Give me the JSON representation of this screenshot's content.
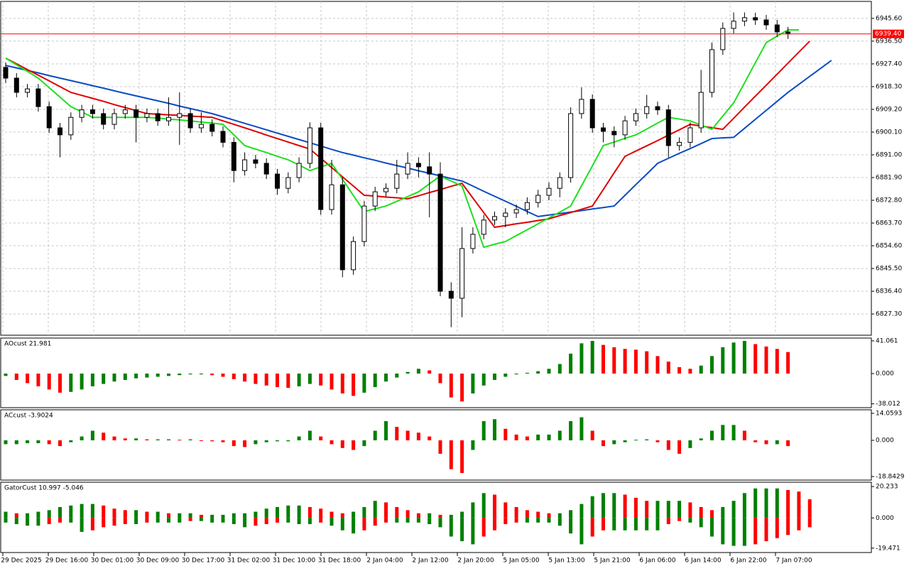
{
  "chart_data": [
    {
      "type": "candlestick",
      "grid": true,
      "up_color": "#ffffff",
      "down_color": "#000000",
      "border_color": "#000000",
      "ylim": [
        6818.8,
        6952.4
      ],
      "yticks": [
        {
          "value": 6945.6,
          "label": "6945.60"
        },
        {
          "value": 6936.5,
          "label": "6936.50"
        },
        {
          "value": 6927.4,
          "label": "6927.40"
        },
        {
          "value": 6918.3,
          "label": "6918.30"
        },
        {
          "value": 6909.2,
          "label": "6909.20"
        },
        {
          "value": 6900.1,
          "label": "6900.10"
        },
        {
          "value": 6891,
          "label": "6891.00"
        },
        {
          "value": 6881.9,
          "label": "6881.90"
        },
        {
          "value": 6872.8,
          "label": "6872.80"
        },
        {
          "value": 6863.7,
          "label": "6863.70"
        },
        {
          "value": 6854.6,
          "label": "6854.60"
        },
        {
          "value": 6845.5,
          "label": "6845.50"
        },
        {
          "value": 6836.4,
          "label": "6836.40"
        },
        {
          "value": 6827.3,
          "label": "6827.30"
        }
      ],
      "last_price": {
        "value": 6939.4,
        "label": "6939.40"
      },
      "last_price_color": "#ff0000",
      "x_labels": [
        "29 Dec 2025",
        "29 Dec 16:00",
        "30 Dec 01:00",
        "30 Dec 09:00",
        "30 Dec 17:00",
        "31 Dec 02:00",
        "31 Dec 10:00",
        "31 Dec 18:00",
        "2 Jan 04:00",
        "2 Jan 12:00",
        "2 Jan 20:00",
        "5 Jan 05:00",
        "5 Jan 13:00",
        "5 Jan 21:00",
        "6 Jan 06:00",
        "6 Jan 14:00",
        "6 Jan 22:00",
        "7 Jan 07:00"
      ],
      "ohlc": [
        [
          6926,
          6928,
          6919.7,
          6921.7
        ],
        [
          6921.7,
          6923.7,
          6914,
          6916
        ],
        [
          6916,
          6919.4,
          6914,
          6917.4
        ],
        [
          6917.4,
          6919.4,
          6908.3,
          6910.3
        ],
        [
          6910.3,
          6912.3,
          6899.8,
          6901.8
        ],
        [
          6901.8,
          6903.8,
          6890,
          6899
        ],
        [
          6899,
          6908,
          6897,
          6906
        ],
        [
          6906,
          6911,
          6904,
          6909
        ],
        [
          6909,
          6911,
          6905.5,
          6907.5
        ],
        [
          6907.5,
          6909.5,
          6901.2,
          6903.2
        ],
        [
          6903.2,
          6909.5,
          6901.2,
          6907.5
        ],
        [
          6907.5,
          6911,
          6905.5,
          6909
        ],
        [
          6909,
          6911,
          6896,
          6906
        ],
        [
          6906,
          6909.5,
          6904,
          6907.5
        ],
        [
          6907.5,
          6909.5,
          6902.6,
          6904.6
        ],
        [
          6904.6,
          6914,
          6902.6,
          6906
        ],
        [
          6906,
          6916,
          6895,
          6907.5
        ],
        [
          6907.5,
          6909.5,
          6899.8,
          6901.8
        ],
        [
          6901.8,
          6908,
          6899.8,
          6903.2
        ],
        [
          6903.2,
          6905.2,
          6898.4,
          6900.4
        ],
        [
          6900.4,
          6902.4,
          6894,
          6896
        ],
        [
          6896,
          6898,
          6880,
          6884.7
        ],
        [
          6884.7,
          6892,
          6882.7,
          6889
        ],
        [
          6889,
          6891,
          6885.6,
          6887.6
        ],
        [
          6887.6,
          6889.6,
          6881.3,
          6883.3
        ],
        [
          6883.3,
          6885.3,
          6875,
          6877.6
        ],
        [
          6877.6,
          6884,
          6875.6,
          6881.9
        ],
        [
          6881.9,
          6890,
          6880,
          6887.6
        ],
        [
          6887.6,
          6904,
          6885.6,
          6901.8
        ],
        [
          6901.8,
          6903.8,
          6867,
          6869.1
        ],
        [
          6869.1,
          6889,
          6867.1,
          6879
        ],
        [
          6879,
          6882,
          6842,
          6845
        ],
        [
          6845,
          6858.3,
          6843,
          6856.3
        ],
        [
          6856.3,
          6872.5,
          6854.3,
          6870.5
        ],
        [
          6870.5,
          6878.2,
          6868.5,
          6876.2
        ],
        [
          6876.2,
          6879.6,
          6874.2,
          6877.6
        ],
        [
          6877.6,
          6889,
          6875.6,
          6883.3
        ],
        [
          6883.3,
          6892,
          6881.3,
          6887.6
        ],
        [
          6887.6,
          6890,
          6882,
          6886.2
        ],
        [
          6886.2,
          6892,
          6866,
          6883.3
        ],
        [
          6883.3,
          6888,
          6834.4,
          6836.4
        ],
        [
          6836.4,
          6840,
          6822,
          6833.6
        ],
        [
          6833.6,
          6862,
          6826,
          6853.5
        ],
        [
          6853.5,
          6862,
          6851.5,
          6859.2
        ],
        [
          6859.2,
          6867,
          6857.2,
          6864.9
        ],
        [
          6864.9,
          6868.3,
          6862.9,
          6866.3
        ],
        [
          6866.3,
          6869.7,
          6862,
          6867.7
        ],
        [
          6867.7,
          6871.1,
          6865.7,
          6869.1
        ],
        [
          6869.1,
          6874,
          6867.1,
          6871.9
        ],
        [
          6871.9,
          6877,
          6869.9,
          6874.8
        ],
        [
          6874.8,
          6880,
          6872.8,
          6877.6
        ],
        [
          6877.6,
          6884,
          6874,
          6881.9
        ],
        [
          6881.9,
          6910,
          6879.9,
          6907.5
        ],
        [
          6907.5,
          6918,
          6905.5,
          6913.2
        ],
        [
          6913.2,
          6915.2,
          6899.8,
          6901.8
        ],
        [
          6901.8,
          6903.8,
          6896,
          6900.4
        ],
        [
          6900.4,
          6902.4,
          6894,
          6899
        ],
        [
          6899,
          6906.6,
          6897,
          6904.6
        ],
        [
          6904.6,
          6909.5,
          6902.6,
          6907.5
        ],
        [
          6907.5,
          6915,
          6905.5,
          6910.3
        ],
        [
          6910.3,
          6912.3,
          6907,
          6909
        ],
        [
          6909,
          6911,
          6890,
          6894.7
        ],
        [
          6894.7,
          6898,
          6892.7,
          6896
        ],
        [
          6896,
          6904,
          6894,
          6901.8
        ],
        [
          6901.8,
          6925,
          6899.8,
          6916
        ],
        [
          6916,
          6936,
          6914,
          6933.1
        ],
        [
          6933.1,
          6944,
          6931,
          6941.6
        ],
        [
          6941.6,
          6948,
          6939.6,
          6944.5
        ],
        [
          6944.5,
          6948,
          6942.5,
          6945.9
        ],
        [
          6945.9,
          6947.9,
          6943,
          6945
        ],
        [
          6945,
          6947,
          6941,
          6943
        ],
        [
          6943,
          6945,
          6938.2,
          6940.2
        ],
        [
          6940.2,
          6942.2,
          6937.4,
          6939.4
        ]
      ],
      "lines": [
        {
          "color": "#0a4bc4",
          "values": [
            6926.8,
            6925.8,
            6924.8,
            6923.8,
            6922.7,
            6921.7,
            6920.7,
            6919.7,
            6918.7,
            6917.7,
            6916.6,
            6915.6,
            6914.6,
            6913.6,
            6912.6,
            6911.6,
            6910.5,
            6909.5,
            6908.5,
            6907.5,
            6906.2,
            6904.9,
            6903.6,
            6902.3,
            6901,
            6899.7,
            6898.4,
            6897.1,
            6895.8,
            6894.5,
            6893.2,
            6891.9,
            6890.9,
            6889.8,
            6888.8,
            6887.7,
            6886.7,
            6885.7,
            6884.6,
            6883.6,
            6882.6,
            6881.5,
            6880.5,
            6878.5,
            6876.4,
            6874.4,
            6872.4,
            6870.4,
            6868.3,
            6866.3,
            6866.9,
            6867.5,
            6868.1,
            6868.7,
            6869.3,
            6869.9,
            6870.5,
            6874.8,
            6879.1,
            6883.3,
            6887.6,
            6889.6,
            6891.6,
            6893.5,
            6895.5,
            6897.5,
            6897.8,
            6898,
            6901.6,
            6905.2,
            6908.8,
            6912.4,
            6916,
            6919.2,
            6922.4,
            6925.6,
            6928.8
          ]
        },
        {
          "color": "#e00000",
          "values": [
            6929.7,
            6927.4,
            6925.1,
            6922.9,
            6920.6,
            6918.3,
            6916,
            6914.8,
            6913.6,
            6912.4,
            6911.1,
            6909.9,
            6908.7,
            6907.5,
            6907.3,
            6907,
            6906.8,
            6906.5,
            6906.3,
            6906,
            6904.6,
            6903.2,
            6901.8,
            6900.4,
            6898.9,
            6897.5,
            6896.1,
            6894.7,
            6893.3,
            6889.6,
            6885.9,
            6882.2,
            6878.5,
            6874.8,
            6874.5,
            6874.1,
            6873.8,
            6873.4,
            6874.6,
            6875.9,
            6877.1,
            6878.4,
            6879.6,
            6873.7,
            6867.9,
            6862,
            6862.7,
            6863.4,
            6864,
            6864.7,
            6865.4,
            6866.7,
            6867.9,
            6869.2,
            6870.5,
            6877.1,
            6883.8,
            6890.4,
            6892.5,
            6894.6,
            6896.7,
            6898.9,
            6901,
            6903.2,
            6902.5,
            6901.9,
            6901.2,
            6905.6,
            6910.1,
            6914.5,
            6918.9,
            6923.3,
            6927.7,
            6932.1,
            6936.5
          ]
        },
        {
          "color": "#1ee01e",
          "values": [
            6929.7,
            6927,
            6924.4,
            6921.7,
            6917.9,
            6914.1,
            6910.3,
            6908.2,
            6906,
            6906,
            6906,
            6906,
            6906,
            6906,
            6905.7,
            6905.3,
            6905,
            6904.6,
            6904.1,
            6903.7,
            6903.2,
            6899,
            6894.7,
            6893.3,
            6891.9,
            6890.4,
            6889,
            6886.9,
            6884.7,
            6886.2,
            6887.6,
            6881.2,
            6874.7,
            6868.3,
            6869.4,
            6870.5,
            6872.4,
            6874.3,
            6876.2,
            6879.4,
            6882.5,
            6880.5,
            6878.5,
            6866.3,
            6854,
            6855.2,
            6856.3,
            6858.7,
            6861,
            6863.4,
            6865.8,
            6868.1,
            6870.5,
            6878.6,
            6886.6,
            6894.7,
            6896.1,
            6897.6,
            6899,
            6901.3,
            6903.7,
            6906,
            6905.3,
            6904.6,
            6902.9,
            6901.2,
            6906.5,
            6911.8,
            6919.8,
            6927.9,
            6935.9,
            6938.5,
            6941,
            6941
          ]
        }
      ]
    },
    {
      "type": "histogram",
      "label": "AOcust 21.981",
      "up_color": "#008000",
      "down_color": "#ff0000",
      "ylim": [
        -42.8,
        44.6
      ],
      "yticks": [
        41.061,
        {
          "value": 0,
          "label": "0.000"
        },
        -38.012
      ],
      "values": [
        -3,
        -8,
        -12,
        -16,
        -20,
        -24,
        -23,
        -20,
        -16,
        -13,
        -10,
        -8,
        -6,
        -5,
        -4,
        -3,
        -2,
        -1,
        -1,
        -2,
        -4,
        -7,
        -10,
        -13,
        -15,
        -17,
        -18,
        -16,
        -13,
        -15,
        -20,
        -25,
        -28,
        -24,
        -17,
        -10,
        -5,
        2,
        6,
        4,
        -12,
        -30,
        -35,
        -25,
        -15,
        -8,
        -4,
        -1,
        1,
        3,
        6,
        12,
        25,
        38,
        41,
        36,
        33,
        31,
        30,
        28,
        22,
        15,
        8,
        6,
        10,
        22,
        33,
        39,
        41,
        37,
        34,
        31,
        27
      ]
    },
    {
      "type": "histogram",
      "label": "ACcust -3.9024",
      "up_color": "#008000",
      "down_color": "#ff0000",
      "ylim": [
        -20.7,
        15.9
      ],
      "yticks": [
        14.0593,
        {
          "value": 0,
          "label": "0.000"
        },
        -18.8429
      ],
      "values": [
        -2,
        -2,
        -1.5,
        -1.5,
        -2,
        -3,
        -1,
        2,
        5,
        4,
        2,
        1,
        1,
        0.5,
        0.5,
        0.5,
        0.3,
        0.5,
        0,
        -0.5,
        -1,
        -3,
        -3.5,
        -2,
        -1,
        -0.5,
        -0.5,
        2,
        5,
        2,
        -2,
        -4,
        -5,
        -3,
        5,
        10,
        7,
        5,
        4,
        2,
        -7,
        -15,
        -17,
        -5,
        10,
        11,
        6,
        3,
        2,
        3,
        3,
        5,
        10,
        12,
        5,
        -3,
        -2,
        -1,
        0.3,
        0.5,
        -1,
        -5,
        -7,
        -4,
        1,
        5,
        8,
        8,
        5,
        -1,
        -2,
        -2,
        -3
      ]
    },
    {
      "type": "gator",
      "label": "GatorCust 10.997 -5.046",
      "up_color": "#008000",
      "down_color": "#ff0000",
      "ylim": [
        -22.3,
        23
      ],
      "yticks": [
        20.233,
        {
          "value": 0,
          "label": "0.000"
        },
        -19.471
      ],
      "upper": [
        4,
        3,
        3,
        4,
        5,
        7,
        8,
        9,
        9,
        8,
        6,
        5,
        5,
        4,
        4,
        3,
        3,
        3,
        2,
        2,
        2,
        3,
        3,
        4,
        6,
        7,
        8,
        8,
        7,
        6,
        4,
        3,
        4,
        7,
        11,
        10,
        7,
        5,
        3,
        3,
        2,
        2,
        4,
        10,
        16,
        15,
        10,
        7,
        5,
        4,
        3,
        3,
        5,
        9,
        14,
        16,
        16,
        15,
        13,
        11,
        11,
        11,
        11,
        10,
        7,
        5,
        7,
        11,
        16,
        19,
        19,
        19,
        18,
        17,
        12
      ],
      "lower": [
        -3,
        -4,
        -5,
        -5,
        -4,
        -3,
        -3,
        -9,
        -8,
        -6,
        -5,
        -4,
        -4,
        -3,
        -3,
        -3,
        -3,
        -2,
        -2,
        -3,
        -3,
        -4,
        -6,
        -5,
        -4,
        -3,
        -3,
        -4,
        -4,
        -3,
        -5,
        -8,
        -10,
        -8,
        -5,
        -3,
        -3,
        -3,
        -3,
        -4,
        -6,
        -12,
        -15,
        -17,
        -12,
        -8,
        -4,
        -3,
        -3,
        -3,
        -3,
        -5,
        -10,
        -17,
        -12,
        -8,
        -8,
        -8,
        -8,
        -8,
        -8,
        -4,
        -2,
        -3,
        -6,
        -12,
        -17,
        -18,
        -18,
        -17,
        -15,
        -13,
        -11,
        -8,
        -6
      ]
    }
  ]
}
